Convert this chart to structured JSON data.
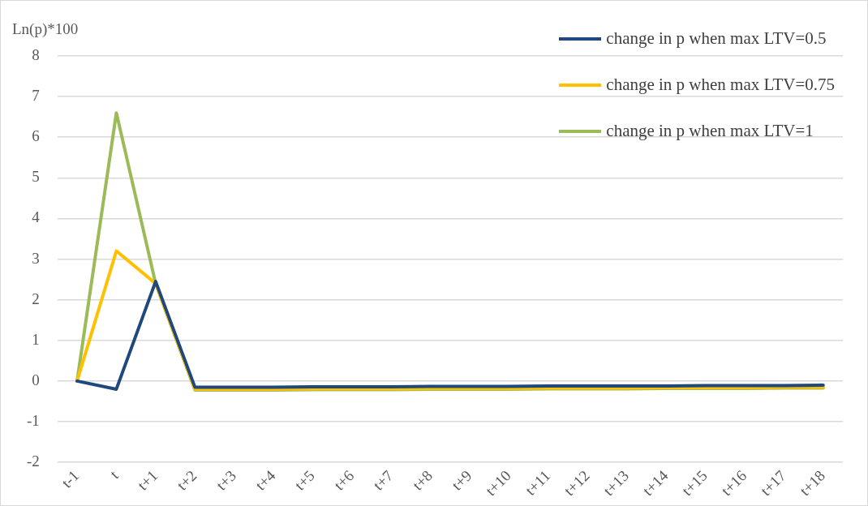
{
  "chart_data": {
    "type": "line",
    "ylabel": "Ln(p)*100",
    "categories": [
      "t-1",
      "t",
      "t+1",
      "t+2",
      "t+3",
      "t+4",
      "t+5",
      "t+6",
      "t+7",
      "t+8",
      "t+9",
      "t+10",
      "t+11",
      "t+12",
      "t+13",
      "t+14",
      "t+15",
      "t+16",
      "t+17",
      "t+18"
    ],
    "series": [
      {
        "name": "change in p when max LTV=0.5",
        "color": "#1f497d",
        "values": [
          0,
          -0.2,
          2.45,
          -0.15,
          -0.15,
          -0.15,
          -0.14,
          -0.14,
          -0.14,
          -0.13,
          -0.13,
          -0.13,
          -0.12,
          -0.12,
          -0.12,
          -0.12,
          -0.11,
          -0.11,
          -0.11,
          -0.1
        ]
      },
      {
        "name": "change in p when max LTV=0.75",
        "color": "#ffc000",
        "values": [
          0,
          3.2,
          2.4,
          -0.2,
          -0.2,
          -0.2,
          -0.19,
          -0.19,
          -0.19,
          -0.18,
          -0.18,
          -0.18,
          -0.17,
          -0.17,
          -0.17,
          -0.16,
          -0.16,
          -0.16,
          -0.15,
          -0.15
        ]
      },
      {
        "name": "change in p when max LTV=1",
        "color": "#9bbb59",
        "values": [
          0,
          6.6,
          2.4,
          -0.22,
          -0.22,
          -0.22,
          -0.21,
          -0.21,
          -0.21,
          -0.2,
          -0.2,
          -0.2,
          -0.19,
          -0.19,
          -0.19,
          -0.18,
          -0.18,
          -0.18,
          -0.17,
          -0.17
        ]
      }
    ],
    "ylim": [
      -2,
      8
    ],
    "yticks": [
      -2,
      -1,
      0,
      1,
      2,
      3,
      4,
      5,
      6,
      7,
      8
    ],
    "grid": "y",
    "legend": "top right",
    "marker": "none",
    "line_style": "solid"
  }
}
